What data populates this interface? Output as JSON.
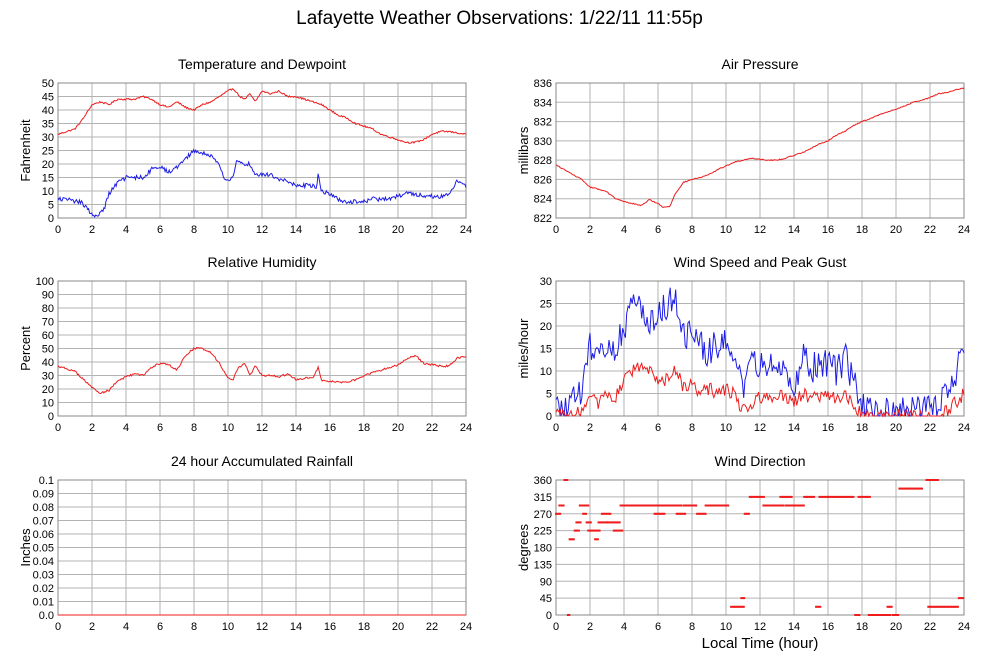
{
  "page": {
    "title": "Lafayette Weather Observations: 1/22/11 11:55p",
    "xlabel": "Local Time (hour)"
  },
  "colors": {
    "red": "#ee1c1c",
    "blue": "#1c1ce8",
    "grid": "#b3b3b3",
    "frame": "#888888"
  },
  "chart_data": [
    {
      "id": "temp",
      "type": "line",
      "title": "Temperature and Dewpoint",
      "ylabel": "Fahrenheit",
      "xlabel": "",
      "xlim": [
        0,
        24
      ],
      "ylim": [
        0,
        50
      ],
      "xticks": [
        0,
        2,
        4,
        6,
        8,
        10,
        12,
        14,
        16,
        18,
        20,
        22,
        24
      ],
      "yticks": [
        0,
        5,
        10,
        15,
        20,
        25,
        30,
        35,
        40,
        45,
        50
      ],
      "grid": true,
      "series": [
        {
          "color": "red",
          "noise": 0.3,
          "x": [
            0,
            1,
            1.5,
            2,
            2.5,
            3,
            3.5,
            4,
            4.5,
            5,
            5.5,
            6,
            6.5,
            7,
            7.5,
            8,
            8.5,
            9,
            9.5,
            10,
            10.3,
            10.7,
            11,
            11.3,
            11.6,
            12,
            12.5,
            13,
            13.5,
            14,
            14.5,
            15,
            15.5,
            16,
            16.5,
            17,
            17.5,
            18,
            18.5,
            19,
            19.5,
            20,
            20.5,
            21,
            21.5,
            22,
            22.5,
            23,
            23.5,
            24
          ],
          "y": [
            31,
            33,
            37,
            42,
            43,
            42,
            44,
            44,
            44,
            45,
            44,
            42,
            41,
            43,
            41,
            40,
            42,
            43,
            45,
            47,
            48,
            45,
            44,
            46,
            43,
            47,
            46,
            47,
            45,
            45,
            44,
            43,
            42,
            40,
            38,
            37,
            35,
            34,
            33,
            31,
            30,
            29,
            28,
            28,
            29,
            31,
            32,
            32,
            31.5,
            31
          ]
        },
        {
          "color": "blue",
          "noise": 0.8,
          "x": [
            0,
            0.5,
            1,
            1.3,
            1.7,
            2,
            2.3,
            2.7,
            3,
            3.5,
            4,
            4.5,
            5,
            5.5,
            6,
            6.5,
            7,
            7.5,
            8,
            8.5,
            9,
            9.5,
            9.8,
            10,
            10.3,
            10.5,
            11,
            11.3,
            11.6,
            12,
            12.5,
            13,
            13.5,
            14,
            14.5,
            15,
            15.2,
            15.3,
            15.5,
            16,
            16.5,
            17,
            17.5,
            18,
            18.5,
            19,
            19.5,
            20,
            20.5,
            21,
            21.5,
            22,
            22.5,
            23,
            23.5,
            24
          ],
          "y": [
            7,
            7,
            6,
            6,
            4,
            1,
            1,
            3,
            9,
            13,
            15,
            15,
            15,
            18,
            19,
            17,
            19,
            22,
            25,
            24,
            23,
            20,
            14,
            14,
            15,
            21,
            20,
            20,
            16,
            16,
            16,
            14,
            14,
            12,
            12,
            12,
            11,
            17,
            10,
            9,
            7,
            6,
            6,
            6,
            7,
            7,
            7,
            8,
            9,
            9,
            8,
            8,
            8,
            9,
            14,
            12
          ]
        }
      ]
    },
    {
      "id": "pressure",
      "type": "line",
      "title": "Air Pressure",
      "ylabel": "millibars",
      "xlabel": "",
      "xlim": [
        0,
        24
      ],
      "ylim": [
        822,
        836
      ],
      "xticks": [
        0,
        2,
        4,
        6,
        8,
        10,
        12,
        14,
        16,
        18,
        20,
        22,
        24
      ],
      "yticks": [
        822,
        824,
        826,
        828,
        830,
        832,
        834,
        836
      ],
      "grid": true,
      "series": [
        {
          "color": "red",
          "noise": 0.05,
          "x": [
            0,
            0.5,
            1,
            1.5,
            2,
            2.5,
            3,
            3.5,
            4,
            4.5,
            5,
            5.5,
            6,
            6.3,
            6.7,
            7,
            7.5,
            8,
            8.5,
            9,
            9.5,
            10,
            10.5,
            11,
            11.5,
            12,
            12.5,
            13,
            13.5,
            14,
            14.5,
            15,
            15.5,
            16,
            16.5,
            17,
            17.5,
            18,
            18.5,
            19,
            19.5,
            20,
            20.5,
            21,
            21.5,
            22,
            22.5,
            23,
            23.5,
            24
          ],
          "y": [
            827.5,
            827,
            826.5,
            826,
            825.2,
            825,
            824.7,
            824,
            823.7,
            823.5,
            823.3,
            823.9,
            823.5,
            823.1,
            823.2,
            824.5,
            825.7,
            826,
            826.2,
            826.5,
            827,
            827.4,
            827.8,
            828,
            828.2,
            828.1,
            828,
            828,
            828.2,
            828.5,
            828.8,
            829.2,
            829.7,
            830,
            830.6,
            831,
            831.6,
            832,
            832.3,
            832.7,
            833,
            833.3,
            833.6,
            834,
            834.2,
            834.5,
            834.9,
            835,
            835.3,
            835.5
          ]
        }
      ]
    },
    {
      "id": "humidity",
      "type": "line",
      "title": "Relative Humidity",
      "ylabel": "Percent",
      "xlabel": "",
      "xlim": [
        0,
        24
      ],
      "ylim": [
        0,
        100
      ],
      "xticks": [
        0,
        2,
        4,
        6,
        8,
        10,
        12,
        14,
        16,
        18,
        20,
        22,
        24
      ],
      "yticks": [
        0,
        10,
        20,
        30,
        40,
        50,
        60,
        70,
        80,
        90,
        100
      ],
      "grid": true,
      "series": [
        {
          "color": "red",
          "noise": 0.7,
          "x": [
            0,
            0.5,
            1,
            1.5,
            2,
            2.5,
            3,
            3.5,
            4,
            4.5,
            5,
            5.5,
            6,
            6.5,
            7,
            7.5,
            8,
            8.5,
            9,
            9.5,
            10,
            10.3,
            10.6,
            11,
            11.3,
            11.6,
            12,
            12.5,
            13,
            13.5,
            14,
            14.5,
            15,
            15.3,
            15.5,
            16,
            16.5,
            17,
            17.5,
            18,
            18.5,
            19,
            19.5,
            20,
            20.5,
            21,
            21.5,
            22,
            22.5,
            23,
            23.5,
            24
          ],
          "y": [
            37,
            35,
            33,
            27,
            21,
            17,
            19,
            26,
            29,
            31,
            30,
            36,
            39,
            38,
            34,
            45,
            50,
            50,
            47,
            39,
            28,
            27,
            36,
            39,
            30,
            37,
            30,
            30,
            29,
            31,
            27,
            28,
            28,
            36,
            26,
            26,
            25,
            25,
            27,
            30,
            32,
            34,
            36,
            38,
            42,
            45,
            39,
            38,
            37,
            37,
            43,
            44
          ]
        }
      ]
    },
    {
      "id": "wind",
      "type": "line",
      "title": "Wind Speed and Peak Gust",
      "ylabel": "miles/hour",
      "xlabel": "",
      "xlim": [
        0,
        24
      ],
      "ylim": [
        0,
        30
      ],
      "xticks": [
        0,
        2,
        4,
        6,
        8,
        10,
        12,
        14,
        16,
        18,
        20,
        22,
        24
      ],
      "yticks": [
        0,
        5,
        10,
        15,
        20,
        25,
        30
      ],
      "grid": true,
      "series": [
        {
          "color": "blue",
          "noise": 3.5,
          "x": [
            0,
            0.5,
            1,
            1.5,
            2,
            2.5,
            3,
            3.5,
            4,
            4.5,
            5,
            5.5,
            6,
            6.5,
            7,
            7.5,
            8,
            8.5,
            9,
            9.5,
            10,
            10.5,
            11,
            11.5,
            12,
            12.5,
            13,
            13.5,
            14,
            14.5,
            15,
            15.5,
            16,
            16.5,
            17,
            17.5,
            18,
            18.5,
            19,
            19.5,
            20,
            20.5,
            21,
            21.5,
            22,
            22.5,
            23,
            23.5,
            24
          ],
          "y": [
            2,
            1,
            3,
            6,
            15,
            16,
            14,
            16,
            20,
            24,
            25,
            21,
            23,
            25,
            27,
            17,
            18,
            16,
            14,
            16,
            18,
            14,
            4,
            11,
            12,
            10,
            12,
            11,
            7,
            13,
            10,
            12,
            12,
            10,
            13,
            8,
            2,
            1,
            1,
            1,
            1,
            1,
            1,
            2,
            1,
            2,
            6,
            10,
            13
          ]
        },
        {
          "color": "red",
          "noise": 1.5,
          "x": [
            0,
            0.5,
            1,
            1.5,
            2,
            2.5,
            3,
            3.5,
            4,
            4.5,
            5,
            5.5,
            6,
            6.5,
            7,
            7.5,
            8,
            8.5,
            9,
            9.5,
            10,
            10.5,
            11,
            11.5,
            12,
            12.5,
            13,
            13.5,
            14,
            14.5,
            15,
            15.5,
            16,
            16.5,
            17,
            17.5,
            18,
            18.5,
            19,
            19.5,
            20,
            20.5,
            21,
            21.5,
            22,
            22.5,
            23,
            23.5,
            24
          ],
          "y": [
            0,
            0,
            0,
            1,
            4,
            3,
            5,
            4,
            8,
            10,
            11,
            10,
            7,
            8,
            11,
            6,
            7,
            5,
            6,
            5,
            6,
            5,
            1,
            3,
            4,
            4,
            5,
            4,
            3,
            5,
            4,
            4,
            5,
            4,
            5,
            3,
            0,
            0,
            0,
            0,
            0,
            0,
            0,
            0,
            0,
            0,
            1,
            3,
            5
          ]
        }
      ]
    },
    {
      "id": "rain",
      "type": "line",
      "title": "24 hour Accumulated Rainfall",
      "ylabel": "Inches",
      "xlabel": "",
      "xlim": [
        0,
        24
      ],
      "ylim": [
        0,
        0.1
      ],
      "xticks": [
        0,
        2,
        4,
        6,
        8,
        10,
        12,
        14,
        16,
        18,
        20,
        22,
        24
      ],
      "yticks": [
        0.0,
        0.01,
        0.02,
        0.03,
        0.04,
        0.05,
        0.06,
        0.07,
        0.08,
        0.09,
        0.1
      ],
      "yticklabels": [
        "0.0",
        "0.01",
        "0.02",
        "0.03",
        "0.04",
        "0.05",
        "0.06",
        "0.07",
        "0.08",
        "0.09",
        "0.1"
      ],
      "grid": true,
      "series": [
        {
          "color": "red",
          "noise": 0,
          "x": [
            0,
            24
          ],
          "y": [
            0,
            0
          ]
        }
      ]
    },
    {
      "id": "direction",
      "type": "scatter",
      "title": "Wind Direction",
      "ylabel": "degrees",
      "xlabel": "Local Time (hour)",
      "xlim": [
        0,
        24
      ],
      "ylim": [
        0,
        360
      ],
      "xticks": [
        0,
        2,
        4,
        6,
        8,
        10,
        12,
        14,
        16,
        18,
        20,
        22,
        24
      ],
      "yticks": [
        0,
        45,
        90,
        135,
        180,
        225,
        270,
        315,
        360
      ],
      "grid": true,
      "segments": [
        [
          0.0,
          0.3,
          270
        ],
        [
          0.2,
          0.5,
          292
        ],
        [
          0.5,
          0.7,
          360
        ],
        [
          0.7,
          0.8,
          0
        ],
        [
          0.8,
          1.1,
          202
        ],
        [
          1.1,
          1.4,
          225
        ],
        [
          1.2,
          1.5,
          247
        ],
        [
          1.4,
          1.9,
          292
        ],
        [
          1.6,
          1.8,
          270
        ],
        [
          1.8,
          2.1,
          247
        ],
        [
          1.9,
          2.6,
          225
        ],
        [
          2.3,
          2.5,
          202
        ],
        [
          2.5,
          3.0,
          247
        ],
        [
          2.7,
          3.2,
          270
        ],
        [
          3.0,
          3.8,
          247
        ],
        [
          3.4,
          3.9,
          225
        ],
        [
          3.8,
          6.2,
          292
        ],
        [
          5.8,
          6.4,
          270
        ],
        [
          6.2,
          7.4,
          292
        ],
        [
          7.1,
          7.6,
          270
        ],
        [
          7.5,
          8.3,
          292
        ],
        [
          8.3,
          8.8,
          270
        ],
        [
          8.8,
          10.2,
          292
        ],
        [
          10.3,
          11.1,
          22
        ],
        [
          10.9,
          11.1,
          45
        ],
        [
          11.1,
          11.4,
          270
        ],
        [
          11.4,
          12.3,
          315
        ],
        [
          12.2,
          13.4,
          292
        ],
        [
          13.2,
          13.9,
          315
        ],
        [
          13.5,
          14.6,
          292
        ],
        [
          14.6,
          15.2,
          315
        ],
        [
          15.3,
          15.6,
          22
        ],
        [
          15.5,
          17.5,
          315
        ],
        [
          17.6,
          17.9,
          0
        ],
        [
          17.8,
          18.5,
          315
        ],
        [
          18.4,
          19.7,
          0
        ],
        [
          19.5,
          19.8,
          22
        ],
        [
          19.8,
          20.2,
          0
        ],
        [
          20.2,
          21.6,
          337
        ],
        [
          21.8,
          22.5,
          360
        ],
        [
          21.9,
          23.7,
          22
        ],
        [
          23.7,
          24.0,
          45
        ]
      ]
    }
  ]
}
